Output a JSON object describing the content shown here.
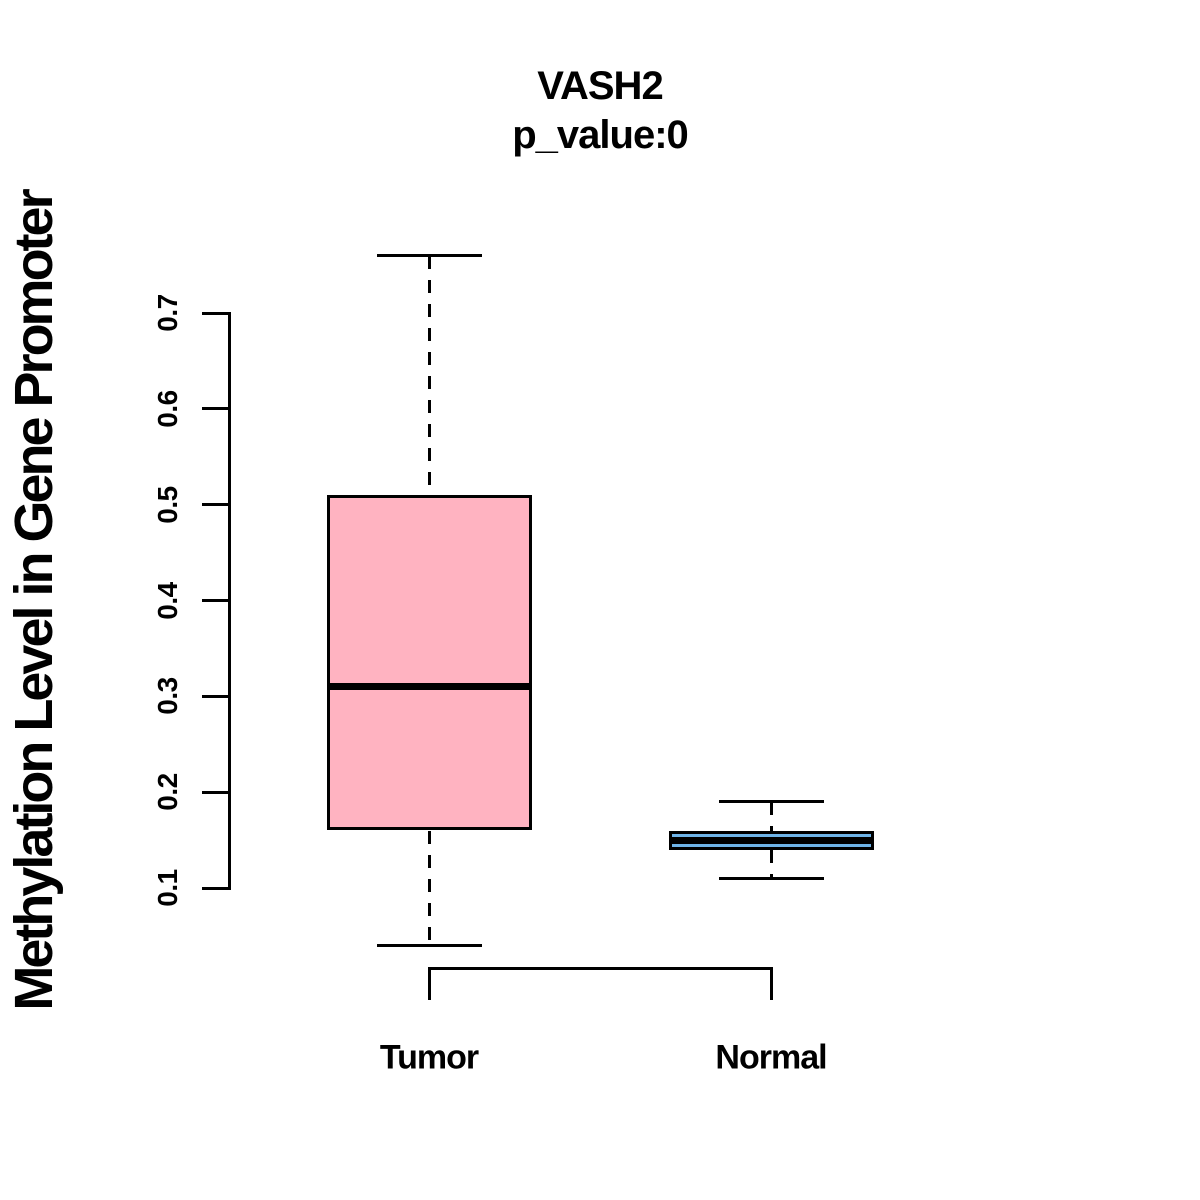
{
  "page": {
    "background_color": "#FFFFFF"
  },
  "chart_data": {
    "type": "boxplot",
    "title": "VASH2",
    "subtitle": "p_value:0",
    "ylabel": "Methylation Level in Gene Promoter",
    "xlabel": "",
    "categories": [
      "Tumor",
      "Normal"
    ],
    "y_ticks": [
      0.1,
      0.2,
      0.3,
      0.4,
      0.5,
      0.6,
      0.7
    ],
    "axis_range": [
      0.1,
      0.7
    ],
    "grid": false,
    "legend": "none",
    "whisker_style": "dashed",
    "line_color": "#000000",
    "series": [
      {
        "name": "Tumor",
        "whisker_low": 0.04,
        "q1": 0.16,
        "median": 0.31,
        "q3": 0.51,
        "whisker_high": 0.76,
        "fill_color": "#FFB3C1"
      },
      {
        "name": "Normal",
        "whisker_low": 0.11,
        "q1": 0.14,
        "median": 0.15,
        "q3": 0.16,
        "whisker_high": 0.19,
        "fill_color": "#6FB4E8"
      }
    ]
  }
}
